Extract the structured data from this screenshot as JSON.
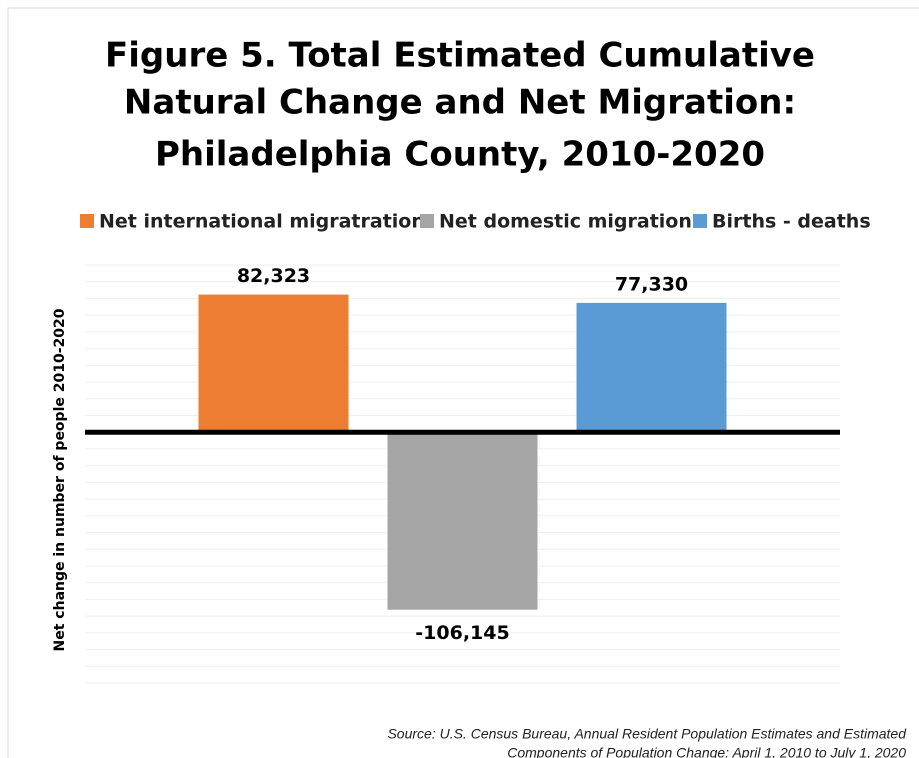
{
  "chart_data": {
    "type": "bar",
    "title": [
      "Figure 5. Total Estimated Cumulative",
      "Natural Change and Net Migration:",
      "Philadelphia County, 2010-2020"
    ],
    "y_label": "Net change in number of people 2010-2020",
    "categories": [
      null
    ],
    "series": [
      {
        "name": "Net international migratration",
        "color": "#ed7d31",
        "values": [
          82323
        ],
        "value_labels": [
          "82,323"
        ]
      },
      {
        "name": "Net domestic migration",
        "color": "#a5a5a5",
        "values": [
          -106145
        ],
        "value_labels": [
          "-106,145"
        ]
      },
      {
        "name": "Births  - deaths",
        "color": "#5b9bd5",
        "values": [
          77330
        ],
        "value_labels": [
          "77,330"
        ]
      }
    ],
    "ylim": [
      -150000,
      100000
    ],
    "yticks": [
      -150000,
      -140000,
      -130000,
      -120000,
      -110000,
      -100000,
      -90000,
      -80000,
      -70000,
      -60000,
      -50000,
      -40000,
      -30000,
      -20000,
      -10000,
      0,
      10000,
      20000,
      30000,
      40000,
      50000,
      60000,
      70000,
      80000,
      90000,
      100000
    ],
    "grid": true,
    "legend": "top",
    "source": [
      "Source: U.S. Census Bureau, Annual Resident Population Estimates and Estimated",
      "Components of Population Change: April 1, 2010 to July 1, 2020"
    ]
  }
}
